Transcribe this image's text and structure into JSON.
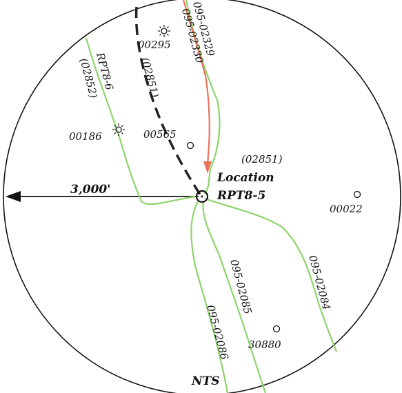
{
  "map": {
    "radius_label": "3,000'",
    "center": {
      "line1": "Location",
      "line2": "RPT8-5",
      "code": "(02851)"
    },
    "wells": [
      {
        "id": "00295",
        "symbol": "sun"
      },
      {
        "id": "00186",
        "symbol": "sun"
      },
      {
        "id": "00565",
        "symbol": "circle"
      },
      {
        "id": "00022",
        "symbol": "circle"
      },
      {
        "id": "30880",
        "symbol": "circle"
      }
    ],
    "lines": [
      {
        "id": "RPT8-6",
        "code": "(02852)",
        "color": "#8cd46a"
      },
      {
        "id": "(02851)",
        "style": "dashed",
        "color": "#333333"
      },
      {
        "id": "095-02329",
        "color": "#8cd46a"
      },
      {
        "id": "095-02330",
        "color": "#e8735a"
      },
      {
        "id": "095-02085",
        "color": "#8cd46a"
      },
      {
        "id": "095-02084",
        "color": "#8cd46a"
      },
      {
        "id": "095-02086",
        "color": "#8cd46a"
      }
    ],
    "north_label": "NTS",
    "colors": {
      "planned": "#e8735a",
      "existing": "#8cd46a",
      "dashed": "#333333",
      "circle": "#000000"
    }
  }
}
